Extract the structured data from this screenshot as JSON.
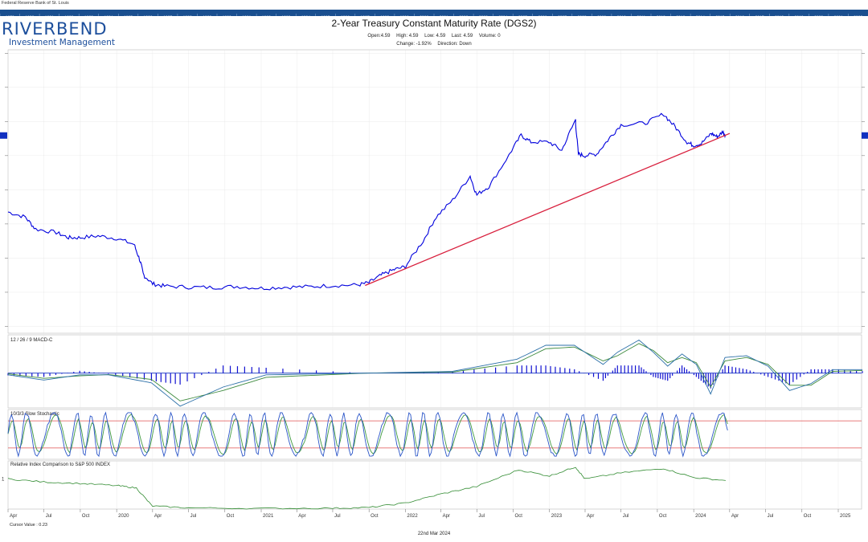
{
  "source_text": "Federal Reserve Bank of St. Louis",
  "year_bar": [
    "1979",
    "1980",
    "1981",
    "1982",
    "1983",
    "1984",
    "1985",
    "1986",
    "1987",
    "1988",
    "1989",
    "1990",
    "1991",
    "1992",
    "1993",
    "1994",
    "1995",
    "1996",
    "1997",
    "1998",
    "1999",
    "2000",
    "2001",
    "2002",
    "2003",
    "2004",
    "2005",
    "2006",
    "2007",
    "2008",
    "2009",
    "2010",
    "2011",
    "2012",
    "2013",
    "2014",
    "2015",
    "2016",
    "2017",
    "2018",
    "2019",
    "2020",
    "2021",
    "2022"
  ],
  "logo": {
    "name": "RIVERBEND",
    "sub": "Investment Management"
  },
  "header": {
    "title": "2-Year Treasury Constant Maturity Rate (DGS2)",
    "open": "Open:4.59",
    "high": "High: 4.59",
    "low": "Low: 4.59",
    "last": "Last: 4.59",
    "volume": "Volume: 0",
    "change": "Change: -1.92%",
    "direction": "Direction: Down"
  },
  "footer": {
    "cursor": "Cursor Value : 0.23",
    "date": "22nd Mar 2024"
  },
  "colors": {
    "price": "#0000dd",
    "trend": "#d81e3c",
    "macd_hist": "#1010d0",
    "macd_line": "#2b6fa8",
    "macd_signal": "#3d8a3d",
    "stoch_k": "#2a55c8",
    "stoch_d": "#3f9a3f",
    "stoch_level": "#e05050",
    "rel": "#2f8a2f",
    "grid": "#dddddd",
    "year_bar": "#1a4f8f"
  },
  "chart_data": [
    {
      "type": "line",
      "title": "2-Year Treasury Constant Maturity Rate (DGS2)",
      "x_axis": {
        "range": [
          "2019-04",
          "2025-03"
        ],
        "tick_labels": [
          "Apr",
          "Jul",
          "Oct",
          "2020",
          "Apr",
          "Jul",
          "Oct",
          "2021",
          "Apr",
          "Jul",
          "Oct",
          "2022",
          "Apr",
          "Jul",
          "Oct",
          "2023",
          "Apr",
          "Jul",
          "Oct",
          "2024",
          "Apr",
          "Jul",
          "Oct",
          "2025"
        ]
      },
      "y_range": [
        -1.2,
        7.1
      ],
      "last_value_marker": 4.59,
      "series": [
        {
          "values": [
            [
              "2019-04-01",
              2.35
            ],
            [
              "2019-05-15",
              2.2
            ],
            [
              "2019-06-10",
              1.85
            ],
            [
              "2019-08-01",
              1.75
            ],
            [
              "2019-09-01",
              1.6
            ],
            [
              "2019-10-01",
              1.6
            ],
            [
              "2019-11-15",
              1.65
            ],
            [
              "2019-12-31",
              1.58
            ],
            [
              "2020-02-15",
              1.4
            ],
            [
              "2020-03-01",
              0.9
            ],
            [
              "2020-03-10",
              0.5
            ],
            [
              "2020-04-01",
              0.25
            ],
            [
              "2020-05-01",
              0.18
            ],
            [
              "2020-07-01",
              0.15
            ],
            [
              "2020-09-01",
              0.14
            ],
            [
              "2020-11-01",
              0.17
            ],
            [
              "2021-01-01",
              0.12
            ],
            [
              "2021-03-01",
              0.15
            ],
            [
              "2021-05-01",
              0.16
            ],
            [
              "2021-07-01",
              0.2
            ],
            [
              "2021-09-01",
              0.21
            ],
            [
              "2021-10-01",
              0.28
            ],
            [
              "2021-11-01",
              0.5
            ],
            [
              "2021-12-01",
              0.65
            ],
            [
              "2022-01-01",
              0.75
            ],
            [
              "2022-02-15",
              1.5
            ],
            [
              "2022-03-20",
              2.2
            ],
            [
              "2022-05-01",
              2.7
            ],
            [
              "2022-06-14",
              3.4
            ],
            [
              "2022-07-01",
              2.85
            ],
            [
              "2022-08-01",
              3.1
            ],
            [
              "2022-09-20",
              4.0
            ],
            [
              "2022-10-21",
              4.6
            ],
            [
              "2022-11-15",
              4.4
            ],
            [
              "2022-12-31",
              4.4
            ],
            [
              "2023-02-01",
              4.15
            ],
            [
              "2023-03-08",
              5.05
            ],
            [
              "2023-03-15",
              4.05
            ],
            [
              "2023-04-01",
              4.0
            ],
            [
              "2023-05-01",
              4.05
            ],
            [
              "2023-06-01",
              4.5
            ],
            [
              "2023-07-01",
              4.9
            ],
            [
              "2023-09-01",
              4.95
            ],
            [
              "2023-10-17",
              5.22
            ],
            [
              "2023-11-15",
              4.85
            ],
            [
              "2023-12-15",
              4.4
            ],
            [
              "2024-01-01",
              4.3
            ],
            [
              "2024-01-20",
              4.35
            ],
            [
              "2024-02-15",
              4.65
            ],
            [
              "2024-03-01",
              4.55
            ],
            [
              "2024-03-15",
              4.7
            ],
            [
              "2024-03-22",
              4.59
            ]
          ]
        },
        {
          "values": [
            [
              "2021-09-21",
              0.2
            ],
            [
              "2024-04-01",
              4.65
            ]
          ]
        }
      ]
    },
    {
      "type": "bar",
      "title": "12 / 26 / 9 MACD-C",
      "y_range": [
        -1,
        1.1
      ],
      "series": [
        {
          "values": [
            [
              0,
              -0.05
            ],
            [
              0.05,
              -0.2
            ],
            [
              0.1,
              -0.05
            ],
            [
              0.14,
              -0.05
            ],
            [
              0.2,
              -0.28
            ],
            [
              0.24,
              -0.95
            ],
            [
              0.3,
              -0.4
            ],
            [
              0.36,
              -0.05
            ],
            [
              0.5,
              0
            ],
            [
              0.62,
              0.05
            ],
            [
              0.71,
              0.4
            ],
            [
              0.75,
              0.8
            ],
            [
              0.79,
              0.8
            ],
            [
              0.83,
              0.25
            ],
            [
              0.85,
              0.6
            ],
            [
              0.88,
              0.95
            ],
            [
              0.9,
              0.6
            ],
            [
              0.92,
              0.2
            ],
            [
              0.94,
              0.55
            ],
            [
              0.96,
              0.25
            ],
            [
              0.98,
              -0.6
            ],
            [
              1.0,
              0.45
            ],
            [
              1.03,
              0.5
            ],
            [
              1.06,
              0.2
            ],
            [
              1.09,
              -0.5
            ],
            [
              1.12,
              -0.3
            ],
            [
              1.15,
              0.1
            ],
            [
              1.2,
              0.1
            ]
          ]
        },
        {
          "values": [
            [
              0,
              -0.02
            ],
            [
              0.05,
              -0.15
            ],
            [
              0.1,
              -0.08
            ],
            [
              0.14,
              -0.04
            ],
            [
              0.2,
              -0.18
            ],
            [
              0.24,
              -0.8
            ],
            [
              0.3,
              -0.5
            ],
            [
              0.36,
              -0.12
            ],
            [
              0.5,
              0
            ],
            [
              0.62,
              0.03
            ],
            [
              0.71,
              0.3
            ],
            [
              0.75,
              0.7
            ],
            [
              0.79,
              0.75
            ],
            [
              0.83,
              0.35
            ],
            [
              0.85,
              0.5
            ],
            [
              0.88,
              0.85
            ],
            [
              0.9,
              0.65
            ],
            [
              0.92,
              0.3
            ],
            [
              0.94,
              0.45
            ],
            [
              0.96,
              0.3
            ],
            [
              0.98,
              -0.4
            ],
            [
              1.0,
              0.35
            ],
            [
              1.03,
              0.45
            ],
            [
              1.06,
              0.25
            ],
            [
              1.09,
              -0.35
            ],
            [
              1.12,
              -0.35
            ],
            [
              1.15,
              0.05
            ],
            [
              1.2,
              0.08
            ]
          ]
        }
      ]
    },
    {
      "type": "line",
      "title": "10/3/3 Slow Stochastic",
      "y_range": [
        0,
        100
      ],
      "levels": [
        80,
        20
      ]
    },
    {
      "type": "line",
      "title": "Relative Index Comparison to S&P 500 INDEX",
      "y_range": [
        0,
        1.6
      ],
      "y_ticks": [
        1
      ],
      "series": [
        {
          "values": [
            [
              "2019-04-01",
              1.0
            ],
            [
              "2019-07-01",
              0.9
            ],
            [
              "2019-10-01",
              0.85
            ],
            [
              "2020-01-01",
              0.78
            ],
            [
              "2020-02-20",
              0.7
            ],
            [
              "2020-04-01",
              0.1
            ],
            [
              "2020-07-01",
              0.04
            ],
            [
              "2021-01-01",
              0.02
            ],
            [
              "2021-07-01",
              0.03
            ],
            [
              "2021-10-01",
              0.05
            ],
            [
              "2022-01-01",
              0.2
            ],
            [
              "2022-04-01",
              0.5
            ],
            [
              "2022-07-01",
              0.75
            ],
            [
              "2022-10-15",
              1.3
            ],
            [
              "2023-01-01",
              1.1
            ],
            [
              "2023-03-08",
              1.4
            ],
            [
              "2023-04-01",
              1.0
            ],
            [
              "2023-07-01",
              1.2
            ],
            [
              "2023-10-17",
              1.35
            ],
            [
              "2024-01-01",
              1.05
            ],
            [
              "2024-03-22",
              0.95
            ]
          ]
        }
      ]
    }
  ]
}
